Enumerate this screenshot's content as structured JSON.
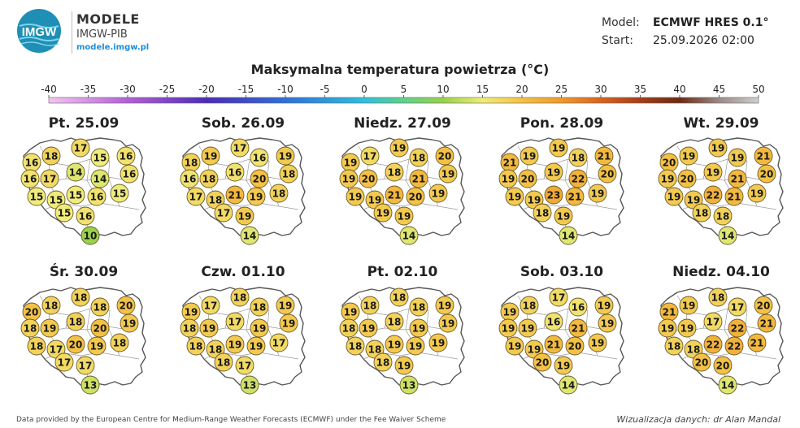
{
  "header": {
    "brand_title": "MODELE",
    "brand_subtitle": "IMGW-PIB",
    "brand_url": "modele.imgw.pl",
    "logo_text": "IMGW",
    "model_label": "Model:",
    "model_value": "ECMWF HRES 0.1°",
    "start_label": "Start:",
    "start_value": "25.09.2026 02:00"
  },
  "title": "Maksymalna temperatura powietrza (°C)",
  "scale": {
    "ticks": [
      "-40",
      "-35",
      "-30",
      "-25",
      "-20",
      "-15",
      "-10",
      "-5",
      "0",
      "5",
      "10",
      "15",
      "20",
      "25",
      "30",
      "35",
      "40",
      "45",
      "50"
    ],
    "stops": [
      {
        "t": -40,
        "c": "#f3c6f0"
      },
      {
        "t": -30,
        "c": "#b45fd6"
      },
      {
        "t": -20,
        "c": "#4b2bb8"
      },
      {
        "t": -10,
        "c": "#2f6fd8"
      },
      {
        "t": 0,
        "c": "#2cc0dd"
      },
      {
        "t": 5,
        "c": "#5fd18a"
      },
      {
        "t": 10,
        "c": "#98d14a"
      },
      {
        "t": 15,
        "c": "#f0ec7a"
      },
      {
        "t": 20,
        "c": "#f4c144"
      },
      {
        "t": 25,
        "c": "#ef9a2a"
      },
      {
        "t": 30,
        "c": "#d9631e"
      },
      {
        "t": 35,
        "c": "#a63d17"
      },
      {
        "t": 40,
        "c": "#6e2a14"
      },
      {
        "t": 45,
        "c": "#9a8a86"
      },
      {
        "t": 50,
        "c": "#cfcfcf"
      }
    ]
  },
  "days": [
    {
      "label": "Pt. 25.09",
      "temps": [
        16,
        18,
        17,
        15,
        16,
        16,
        17,
        14,
        14,
        16,
        15,
        15,
        15,
        16,
        15,
        15,
        16,
        10
      ]
    },
    {
      "label": "Sob. 26.09",
      "temps": [
        18,
        19,
        17,
        16,
        19,
        16,
        18,
        16,
        20,
        18,
        17,
        18,
        21,
        19,
        18,
        17,
        19,
        14
      ]
    },
    {
      "label": "Niedz. 27.09",
      "temps": [
        19,
        17,
        19,
        18,
        20,
        19,
        20,
        18,
        21,
        19,
        19,
        19,
        21,
        20,
        19,
        19,
        19,
        14
      ]
    },
    {
      "label": "Pon. 28.09",
      "temps": [
        21,
        19,
        19,
        18,
        21,
        19,
        20,
        19,
        22,
        20,
        19,
        19,
        23,
        21,
        19,
        18,
        19,
        14
      ]
    },
    {
      "label": "Wt. 29.09",
      "temps": [
        20,
        19,
        19,
        19,
        21,
        19,
        20,
        19,
        21,
        20,
        19,
        19,
        22,
        21,
        19,
        18,
        18,
        14
      ]
    },
    {
      "label": "Śr. 30.09",
      "temps": [
        20,
        18,
        18,
        18,
        20,
        18,
        19,
        18,
        20,
        19,
        18,
        17,
        20,
        19,
        18,
        17,
        17,
        13
      ]
    },
    {
      "label": "Czw. 01.10",
      "temps": [
        19,
        17,
        18,
        18,
        19,
        18,
        19,
        17,
        19,
        19,
        18,
        18,
        19,
        19,
        17,
        18,
        17,
        13
      ]
    },
    {
      "label": "Pt. 02.10",
      "temps": [
        19,
        18,
        18,
        18,
        19,
        18,
        19,
        18,
        19,
        19,
        18,
        18,
        19,
        19,
        19,
        18,
        19,
        13
      ]
    },
    {
      "label": "Sob. 03.10",
      "temps": [
        19,
        18,
        17,
        16,
        19,
        19,
        19,
        16,
        21,
        19,
        19,
        19,
        21,
        20,
        19,
        20,
        19,
        14
      ]
    },
    {
      "label": "Niedz. 04.10",
      "temps": [
        21,
        19,
        18,
        17,
        20,
        19,
        19,
        17,
        22,
        21,
        18,
        18,
        22,
        22,
        21,
        20,
        20,
        14
      ]
    }
  ],
  "footer": {
    "source": "Data provided by the European Centre for Medium-Range Weather Forecasts (ECMWF) under the Fee Waiver Scheme",
    "credit": "Wizualizacja danych: dr Alan Mandal"
  }
}
